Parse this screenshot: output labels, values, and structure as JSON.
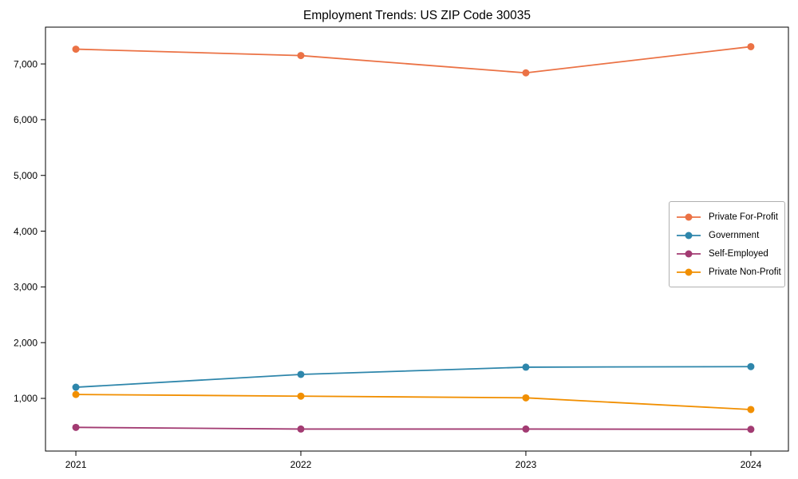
{
  "chart_data": {
    "type": "line",
    "title": "Employment Trends: US ZIP Code 30035",
    "xlabel": "",
    "ylabel": "",
    "x": [
      2021,
      2022,
      2023,
      2024
    ],
    "x_tick_labels": [
      "2021",
      "2022",
      "2023",
      "2024"
    ],
    "y_tick_values": [
      1000,
      2000,
      3000,
      4000,
      5000,
      6000,
      7000
    ],
    "y_tick_labels": [
      "1,000",
      "2,000",
      "3,000",
      "4,000",
      "5,000",
      "6,000",
      "7,000"
    ],
    "xlim": [
      2020.865,
      2024.167
    ],
    "ylim": [
      55,
      7660
    ],
    "grid": false,
    "legend_position": "center-right",
    "axis_color": "#000000",
    "series": [
      {
        "name": "Private For-Profit",
        "color": "#EB7245",
        "values": [
          7265,
          7150,
          6840,
          7310
        ]
      },
      {
        "name": "Government",
        "color": "#2E86AB",
        "values": [
          1200,
          1430,
          1560,
          1570
        ]
      },
      {
        "name": "Self-Employed",
        "color": "#A23B72",
        "values": [
          480,
          450,
          450,
          445
        ]
      },
      {
        "name": "Private Non-Profit",
        "color": "#F18F01",
        "values": [
          1070,
          1040,
          1010,
          800
        ]
      }
    ]
  }
}
